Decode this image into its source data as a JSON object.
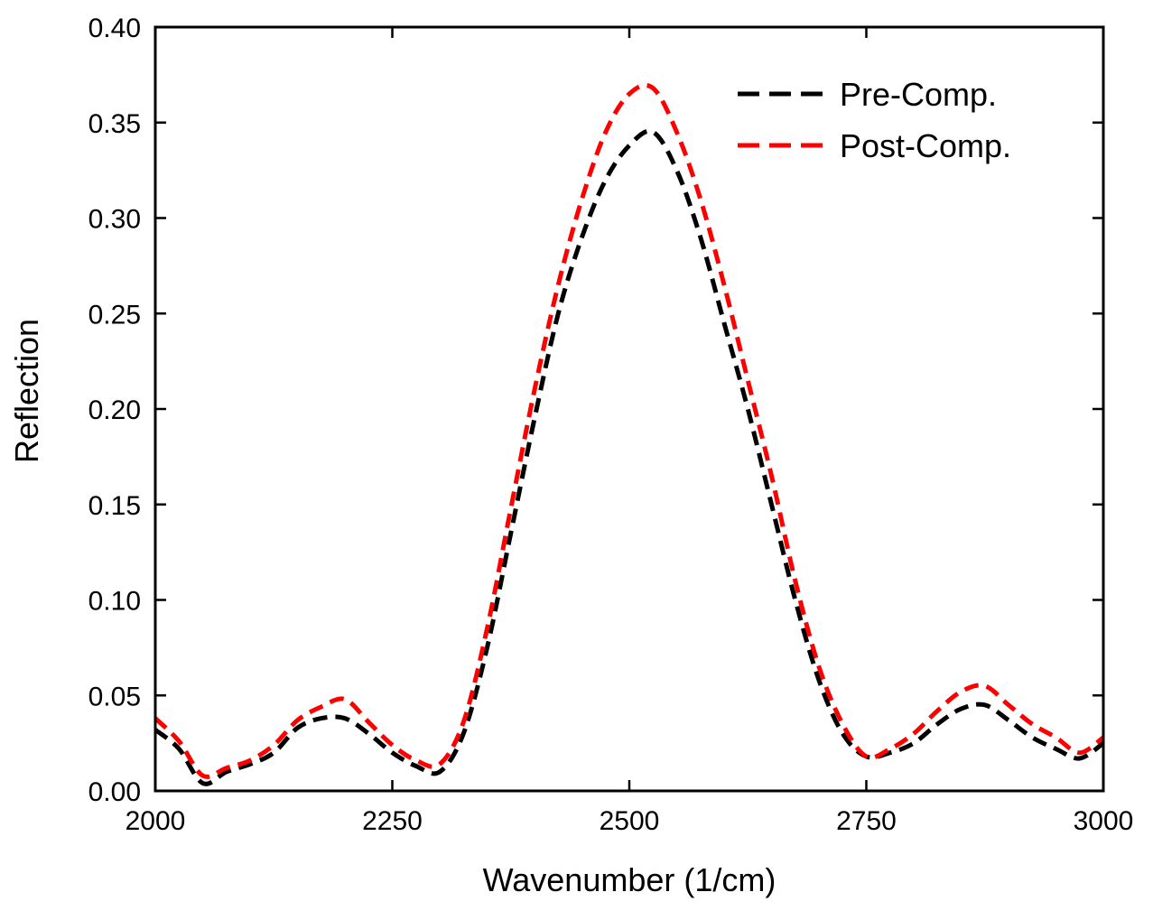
{
  "chart_data": {
    "type": "line",
    "title": "",
    "xlabel": "Wavenumber (1/cm)",
    "ylabel": "Reflection",
    "xlim": [
      2000,
      3000
    ],
    "ylim": [
      0.0,
      0.4
    ],
    "xticks": [
      2000,
      2250,
      2500,
      2750,
      3000
    ],
    "xtick_labels": [
      "2000",
      "2250",
      "2500",
      "2750",
      "3000"
    ],
    "yticks": [
      0.0,
      0.05,
      0.1,
      0.15,
      0.2,
      0.25,
      0.3,
      0.35,
      0.4
    ],
    "ytick_labels": [
      "0.00",
      "0.05",
      "0.10",
      "0.15",
      "0.20",
      "0.25",
      "0.30",
      "0.35",
      "0.40"
    ],
    "grid": false,
    "legend_position": "top-right",
    "x": [
      2000,
      2025,
      2050,
      2075,
      2100,
      2125,
      2150,
      2175,
      2200,
      2225,
      2250,
      2275,
      2300,
      2325,
      2350,
      2375,
      2400,
      2425,
      2450,
      2475,
      2500,
      2525,
      2550,
      2575,
      2600,
      2625,
      2650,
      2675,
      2700,
      2725,
      2750,
      2775,
      2800,
      2825,
      2850,
      2875,
      2900,
      2925,
      2950,
      2975,
      3000
    ],
    "series": [
      {
        "name": "Pre-Comp.",
        "color": "#000000",
        "values": [
          0.032,
          0.022,
          0.004,
          0.01,
          0.014,
          0.02,
          0.033,
          0.038,
          0.038,
          0.03,
          0.02,
          0.013,
          0.01,
          0.03,
          0.075,
          0.135,
          0.195,
          0.25,
          0.29,
          0.32,
          0.338,
          0.345,
          0.325,
          0.29,
          0.245,
          0.2,
          0.15,
          0.1,
          0.058,
          0.03,
          0.018,
          0.02,
          0.025,
          0.035,
          0.043,
          0.045,
          0.037,
          0.028,
          0.022,
          0.017,
          0.025
        ]
      },
      {
        "name": "Post-Comp.",
        "color": "#ff0000",
        "values": [
          0.038,
          0.026,
          0.008,
          0.012,
          0.016,
          0.024,
          0.037,
          0.044,
          0.048,
          0.036,
          0.024,
          0.016,
          0.014,
          0.036,
          0.085,
          0.148,
          0.21,
          0.265,
          0.31,
          0.345,
          0.365,
          0.368,
          0.345,
          0.31,
          0.265,
          0.215,
          0.165,
          0.11,
          0.065,
          0.035,
          0.018,
          0.022,
          0.03,
          0.042,
          0.052,
          0.055,
          0.045,
          0.035,
          0.028,
          0.02,
          0.028
        ]
      }
    ]
  }
}
